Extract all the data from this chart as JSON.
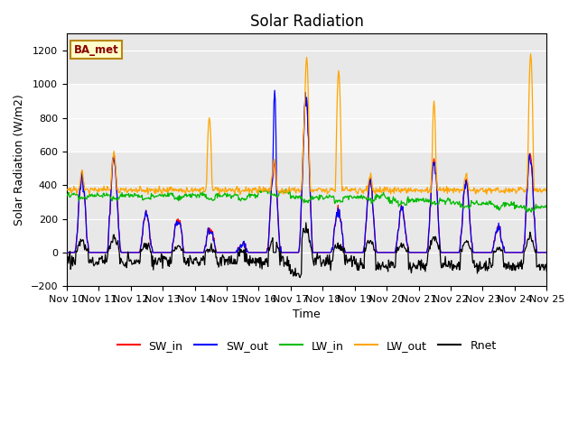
{
  "title": "Solar Radiation",
  "xlabel": "Time",
  "ylabel": "Solar Radiation (W/m2)",
  "xlim": [
    0,
    360
  ],
  "ylim": [
    -200,
    1300
  ],
  "yticks": [
    -200,
    0,
    200,
    400,
    600,
    800,
    1000,
    1200
  ],
  "xtick_labels": [
    "Nov 10",
    "Nov 11",
    "Nov 12",
    "Nov 13",
    "Nov 14",
    "Nov 15",
    "Nov 16",
    "Nov 17",
    "Nov 18",
    "Nov 19",
    "Nov 20",
    "Nov 21",
    "Nov 22",
    "Nov 23",
    "Nov 24",
    "Nov 25"
  ],
  "xtick_positions": [
    0,
    24,
    48,
    72,
    96,
    120,
    144,
    168,
    192,
    216,
    240,
    264,
    288,
    312,
    336,
    360
  ],
  "series_colors": {
    "SW_in": "#FF0000",
    "SW_out": "#0000FF",
    "LW_in": "#00BB00",
    "LW_out": "#FFA500",
    "Rnet": "#000000"
  },
  "legend_label": "BA_met",
  "shaded_y1": 600,
  "shaded_y2": 1000,
  "background_color": "#ffffff",
  "plot_bg_color": "#e8e8e8",
  "shaded_color": "#f5f5f5"
}
